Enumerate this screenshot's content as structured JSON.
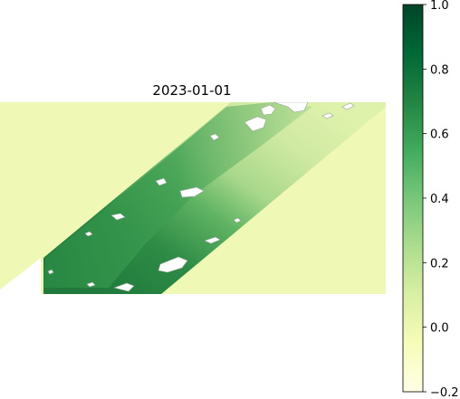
{
  "chart_data": {
    "type": "heatmap",
    "title": "2023-01-01",
    "xlabel": "",
    "ylabel": "",
    "axes_visible": false,
    "colormap": "YlGn",
    "colorbar": {
      "vmin": -0.2,
      "vmax": 1.0,
      "ticks": [
        -0.2,
        0.0,
        0.2,
        0.4,
        0.6,
        0.8,
        1.0
      ],
      "tick_labels": [
        "−0.2",
        "0.0",
        "0.2",
        "0.4",
        "0.6",
        "0.8",
        "1.0"
      ],
      "placement": "right"
    },
    "fill_value": 0.0,
    "nodata_color": "#ffffff",
    "regions": [
      {
        "name": "",
        "description": "",
        "mean_value": 0.55
      }
    ]
  }
}
